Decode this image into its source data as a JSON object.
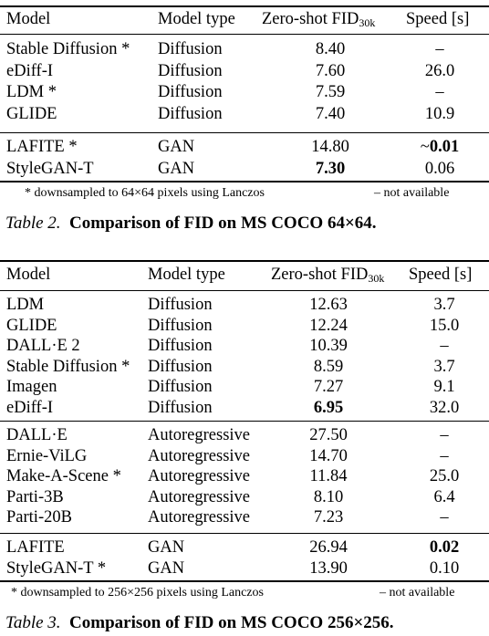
{
  "table2": {
    "headers": {
      "model": "Model",
      "type": "Model type",
      "fid": "Zero-shot FID",
      "fid_sub": "30k",
      "speed": "Speed [s]"
    },
    "groups": [
      [
        {
          "model": "Stable Diffusion *",
          "type": "Diffusion",
          "fid": "8.40",
          "speed": "–"
        },
        {
          "model": "eDiff-I",
          "type": "Diffusion",
          "fid": "7.60",
          "speed": "26.0"
        },
        {
          "model": "LDM *",
          "type": "Diffusion",
          "fid": "7.59",
          "speed": "–"
        },
        {
          "model": "GLIDE",
          "type": "Diffusion",
          "fid": "7.40",
          "speed": "10.9"
        }
      ],
      [
        {
          "model": "LAFITE *",
          "type": "GAN",
          "fid": "14.80",
          "speed_prefix": "~",
          "speed": "0.01",
          "speed_bold": true
        },
        {
          "model": "StyleGAN-T",
          "type": "GAN",
          "fid": "7.30",
          "fid_bold": true,
          "speed": "0.06"
        }
      ]
    ],
    "note_left": "* downsampled to 64×64 pixels using Lanczos",
    "note_right": "– not available",
    "caption_label": "Table 2.",
    "caption_text": "Comparison of FID on MS COCO 64×64."
  },
  "table3": {
    "headers": {
      "model": "Model",
      "type": "Model type",
      "fid": "Zero-shot FID",
      "fid_sub": "30k",
      "speed": "Speed [s]"
    },
    "groups": [
      [
        {
          "model": "LDM",
          "type": "Diffusion",
          "fid": "12.63",
          "speed": "3.7"
        },
        {
          "model": "GLIDE",
          "type": "Diffusion",
          "fid": "12.24",
          "speed": "15.0"
        },
        {
          "model": "DALL·E 2",
          "type": "Diffusion",
          "fid": "10.39",
          "speed": "–"
        },
        {
          "model": "Stable Diffusion *",
          "type": "Diffusion",
          "fid": "8.59",
          "speed": "3.7"
        },
        {
          "model": "Imagen",
          "type": "Diffusion",
          "fid": "7.27",
          "speed": "9.1"
        },
        {
          "model": "eDiff-I",
          "type": "Diffusion",
          "fid": "6.95",
          "fid_bold": true,
          "speed": "32.0"
        }
      ],
      [
        {
          "model": "DALL·E",
          "type": "Autoregressive",
          "fid": "27.50",
          "speed": "–"
        },
        {
          "model": "Ernie-ViLG",
          "type": "Autoregressive",
          "fid": "14.70",
          "speed": "–"
        },
        {
          "model": "Make-A-Scene *",
          "type": "Autoregressive",
          "fid": "11.84",
          "speed": "25.0"
        },
        {
          "model": "Parti-3B",
          "type": "Autoregressive",
          "fid": "8.10",
          "speed": "6.4"
        },
        {
          "model": "Parti-20B",
          "type": "Autoregressive",
          "fid": "7.23",
          "speed": "–"
        }
      ],
      [
        {
          "model": "LAFITE",
          "type": "GAN",
          "fid": "26.94",
          "speed": "0.02",
          "speed_bold": true
        },
        {
          "model": "StyleGAN-T *",
          "type": "GAN",
          "fid": "13.90",
          "speed": "0.10"
        }
      ]
    ],
    "note_left": "* downsampled to 256×256 pixels using Lanczos",
    "note_right": "– not available",
    "caption_label": "Table 3.",
    "caption_text": "Comparison of FID on MS COCO 256×256."
  }
}
